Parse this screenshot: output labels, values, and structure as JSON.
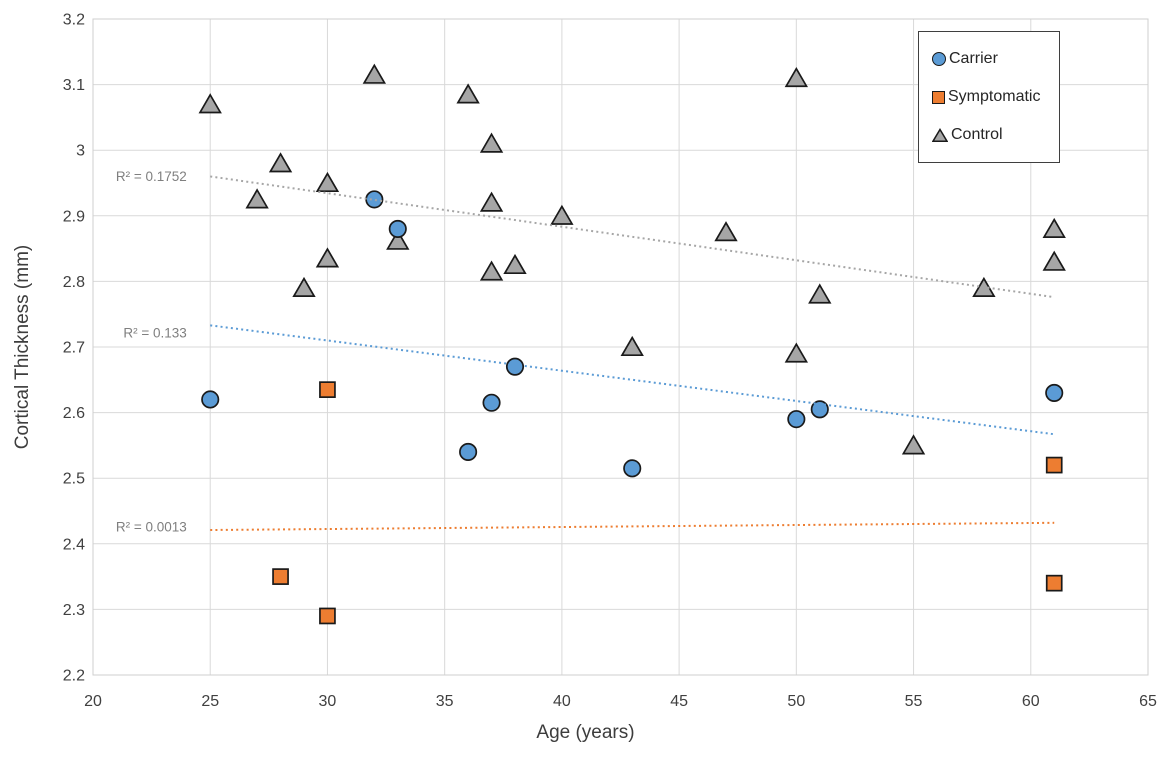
{
  "axes": {
    "x_title": "Age (years)",
    "y_title": "Cortical Thickness (mm)"
  },
  "chart_data": {
    "type": "scatter",
    "xlabel": "Age (years)",
    "ylabel": "Cortical Thickness (mm)",
    "xlim": [
      20,
      65
    ],
    "ylim": [
      2.2,
      3.2
    ],
    "xticks": [
      20,
      25,
      30,
      35,
      40,
      45,
      50,
      55,
      60,
      65
    ],
    "yticks": [
      2.2,
      2.3,
      2.4,
      2.5,
      2.6,
      2.7,
      2.8,
      2.9,
      3.0,
      3.1,
      3.2
    ],
    "grid": true,
    "legend_position": "inside-top-right",
    "grid_color": "#D9D9D9",
    "marker_outline": "#1a1a1a",
    "series": [
      {
        "name": "Carrier",
        "marker": "circle",
        "fill": "#5B9BD5",
        "points": [
          [
            25,
            2.62
          ],
          [
            32,
            2.925
          ],
          [
            33,
            2.88
          ],
          [
            36,
            2.54
          ],
          [
            37,
            2.615
          ],
          [
            38,
            2.67
          ],
          [
            43,
            2.515
          ],
          [
            50,
            2.59
          ],
          [
            51,
            2.605
          ],
          [
            61,
            2.63
          ]
        ],
        "trendline": {
          "x1": 25,
          "y1": 2.733,
          "x2": 61,
          "y2": 2.567,
          "color": "#5B9BD5",
          "label": {
            "text": "R² = 0.133",
            "x": 24.0,
            "y": 2.722
          }
        }
      },
      {
        "name": "Symptomatic",
        "marker": "square",
        "fill": "#ED7D31",
        "points": [
          [
            28,
            2.35
          ],
          [
            30,
            2.635
          ],
          [
            30,
            2.29
          ],
          [
            61,
            2.52
          ],
          [
            61,
            2.34
          ]
        ],
        "trendline": {
          "x1": 25,
          "y1": 2.421,
          "x2": 61,
          "y2": 2.432,
          "color": "#ED7D31",
          "label": {
            "text": "R² = 0.0013",
            "x": 24.0,
            "y": 2.426
          }
        }
      },
      {
        "name": "Control",
        "marker": "triangle",
        "fill": "#A6A6A6",
        "points": [
          [
            25,
            3.07
          ],
          [
            27,
            2.925
          ],
          [
            28,
            2.98
          ],
          [
            29,
            2.79
          ],
          [
            30,
            2.95
          ],
          [
            30,
            2.835
          ],
          [
            32,
            3.115
          ],
          [
            33,
            2.862
          ],
          [
            36,
            3.085
          ],
          [
            37,
            3.01
          ],
          [
            37,
            2.92
          ],
          [
            37,
            2.815
          ],
          [
            38,
            2.825
          ],
          [
            40,
            2.9
          ],
          [
            43,
            2.7
          ],
          [
            47,
            2.875
          ],
          [
            50,
            3.11
          ],
          [
            50,
            2.69
          ],
          [
            51,
            2.78
          ],
          [
            55,
            2.55
          ],
          [
            58,
            2.79
          ],
          [
            61,
            2.88
          ],
          [
            61,
            2.83
          ]
        ],
        "trendline": {
          "x1": 25,
          "y1": 2.96,
          "x2": 61,
          "y2": 2.776,
          "color": "#A6A6A6",
          "label": {
            "text": "R² = 0.1752",
            "x": 24.0,
            "y": 2.961
          }
        }
      }
    ]
  }
}
